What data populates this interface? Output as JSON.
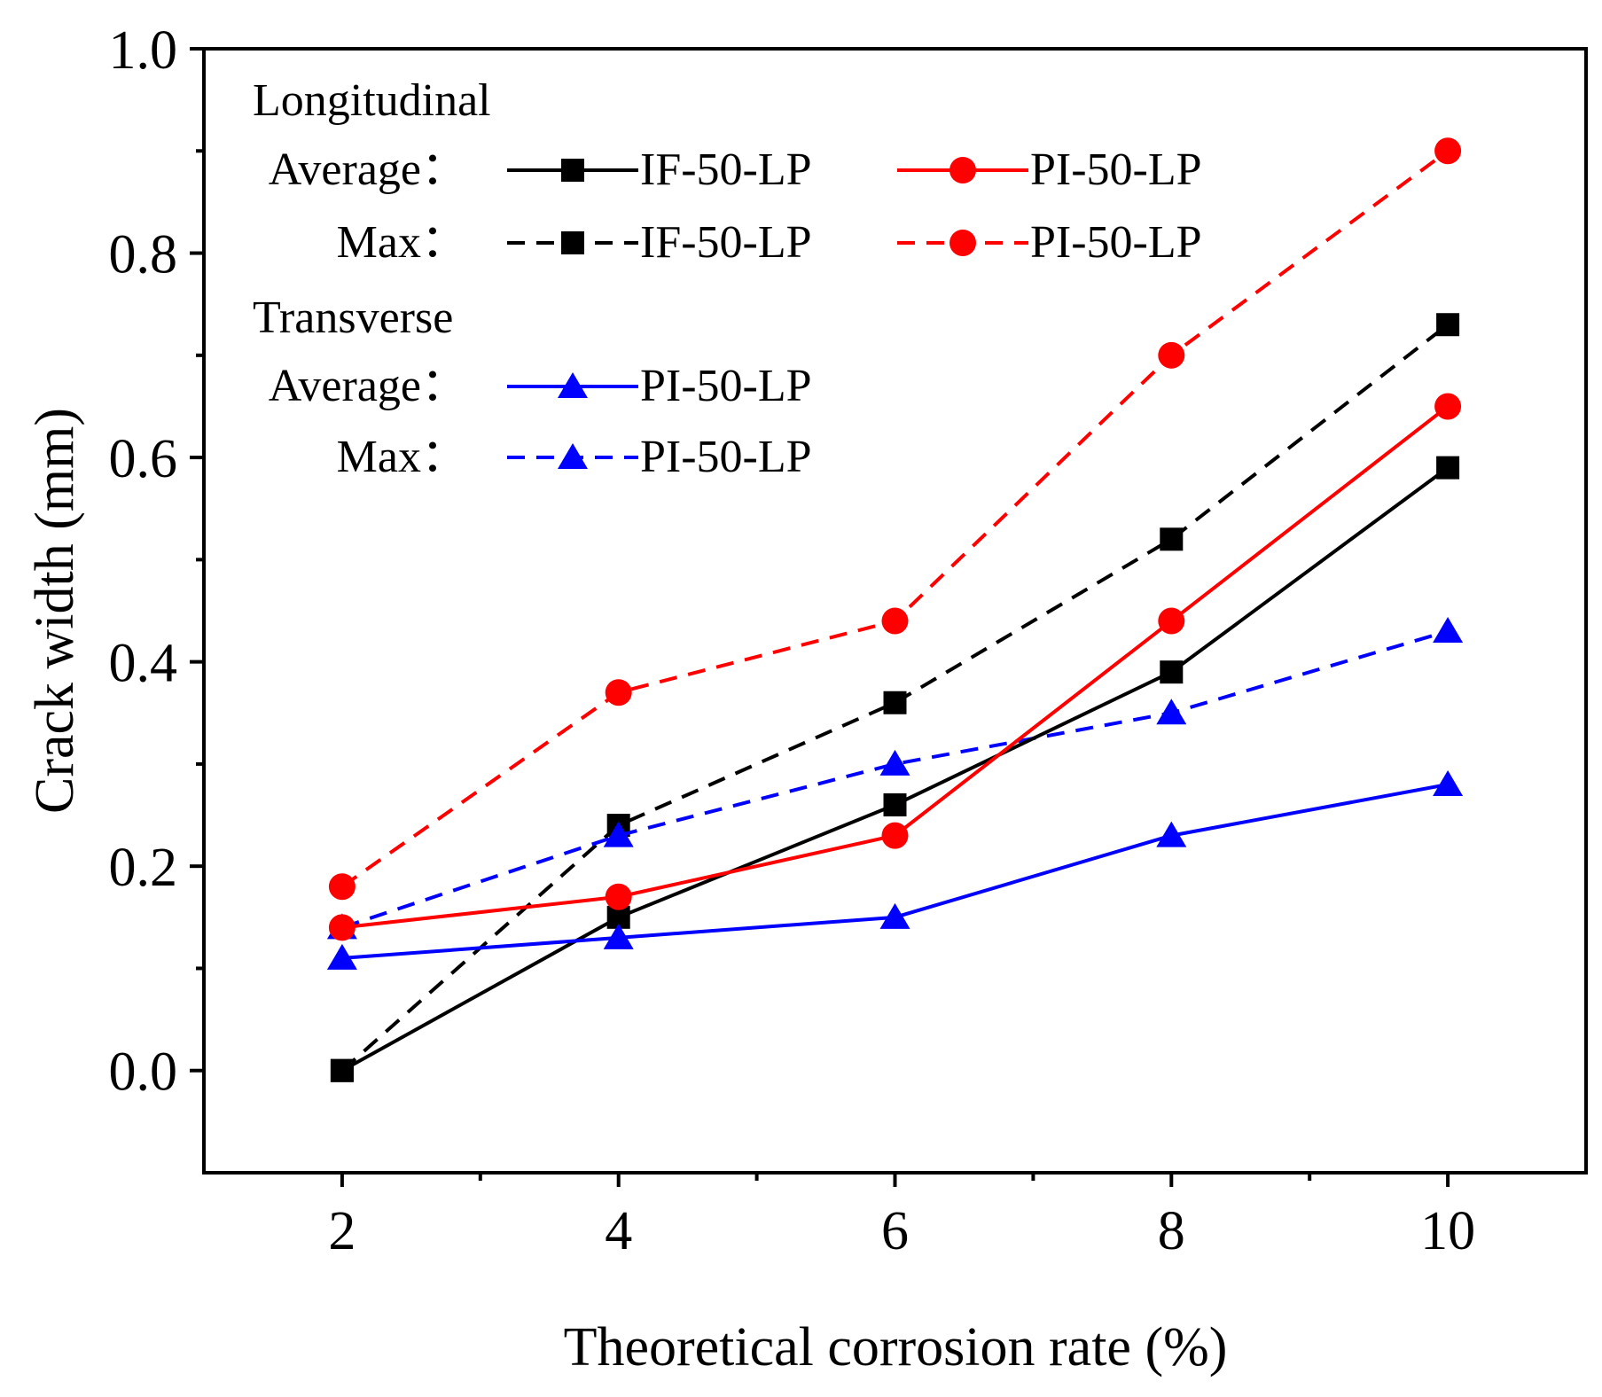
{
  "chart_data": {
    "type": "line",
    "title": "",
    "xlabel": "Theoretical corrosion rate (%)",
    "ylabel": "Crack width (mm)",
    "xlim": [
      1,
      11
    ],
    "ylim": [
      -0.1,
      1.0
    ],
    "x_ticks": [
      2,
      4,
      6,
      8,
      10
    ],
    "x_minor_ticks": [
      3,
      5,
      7,
      9
    ],
    "x_tick_labels": [
      "2",
      "4",
      "6",
      "8",
      "10"
    ],
    "y_ticks": [
      0.0,
      0.2,
      0.4,
      0.6,
      0.8,
      1.0
    ],
    "y_minor_ticks": [
      0.1,
      0.3,
      0.5,
      0.7,
      0.9
    ],
    "y_tick_labels": [
      "0.0",
      "0.2",
      "0.4",
      "0.6",
      "0.8",
      "1.0"
    ],
    "grid": false,
    "x": [
      2,
      4,
      6,
      8,
      10
    ],
    "series": [
      {
        "id": "long-avg-if",
        "name": "IF-50-LP",
        "group": "Longitudinal",
        "stat": "Average",
        "color": "#000000",
        "dash": "solid",
        "marker": "square",
        "values": [
          0.0,
          0.15,
          0.26,
          0.39,
          0.59
        ]
      },
      {
        "id": "long-avg-pi",
        "name": "PI-50-LP",
        "group": "Longitudinal",
        "stat": "Average",
        "color": "#ff0000",
        "dash": "solid",
        "marker": "circle",
        "values": [
          0.14,
          0.17,
          0.23,
          0.44,
          0.65
        ]
      },
      {
        "id": "long-max-if",
        "name": "IF-50-LP",
        "group": "Longitudinal",
        "stat": "Max",
        "color": "#000000",
        "dash": "dashed",
        "marker": "square",
        "values": [
          0.0,
          0.24,
          0.36,
          0.52,
          0.73
        ]
      },
      {
        "id": "long-max-pi",
        "name": "PI-50-LP",
        "group": "Longitudinal",
        "stat": "Max",
        "color": "#ff0000",
        "dash": "dashed",
        "marker": "circle",
        "values": [
          0.18,
          0.37,
          0.44,
          0.7,
          0.9
        ]
      },
      {
        "id": "trans-avg-pi",
        "name": "PI-50-LP",
        "group": "Transverse",
        "stat": "Average",
        "color": "#0000ff",
        "dash": "solid",
        "marker": "triangle",
        "values": [
          0.11,
          0.13,
          0.15,
          0.23,
          0.28
        ]
      },
      {
        "id": "trans-max-pi",
        "name": "PI-50-LP",
        "group": "Transverse",
        "stat": "Max",
        "color": "#0000ff",
        "dash": "dashed",
        "marker": "triangle",
        "values": [
          0.14,
          0.23,
          0.3,
          0.35,
          0.43
        ]
      }
    ],
    "legend": {
      "placement": "top-left",
      "longitudinal_heading": "Longitudinal",
      "transverse_heading": "Transverse",
      "rows": [
        {
          "row_id": "long-average",
          "label": "Average：",
          "entries": [
            {
              "series": "long-avg-if",
              "text": "IF-50-LP"
            },
            {
              "series": "long-avg-pi",
              "text": "PI-50-LP"
            }
          ]
        },
        {
          "row_id": "long-max",
          "label": "Max：",
          "entries": [
            {
              "series": "long-max-if",
              "text": "IF-50-LP"
            },
            {
              "series": "long-max-pi",
              "text": "PI-50-LP"
            }
          ]
        },
        {
          "row_id": "trans-average",
          "label": "Average：",
          "entries": [
            {
              "series": "trans-avg-pi",
              "text": "PI-50-LP"
            }
          ]
        },
        {
          "row_id": "trans-max",
          "label": "Max：",
          "entries": [
            {
              "series": "trans-max-pi",
              "text": "PI-50-LP"
            }
          ]
        }
      ]
    }
  }
}
